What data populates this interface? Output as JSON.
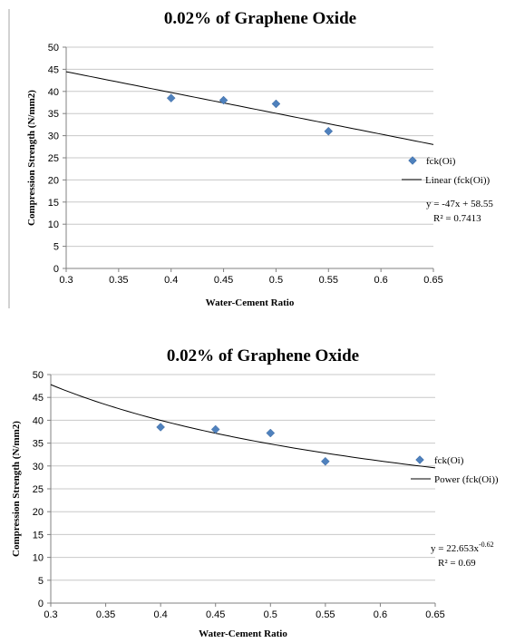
{
  "chart_data": [
    {
      "type": "scatter",
      "title": "0.02% of Graphene Oxide",
      "xlabel": "Water-Cement Ratio",
      "ylabel": "Compression Strength (N/mm2)",
      "xlim": [
        0.3,
        0.65
      ],
      "ylim": [
        0,
        50
      ],
      "xticks": [
        0.3,
        0.35,
        0.4,
        0.45,
        0.5,
        0.55,
        0.6,
        0.65
      ],
      "xtick_labels": [
        "0.3",
        "0.35",
        "0.4",
        "0.45",
        "0.5",
        "0.55",
        "0.6",
        "0.65"
      ],
      "yticks": [
        0,
        5,
        10,
        15,
        20,
        25,
        30,
        35,
        40,
        45,
        50
      ],
      "ytick_labels": [
        "0",
        "5",
        "10",
        "15",
        "20",
        "25",
        "30",
        "35",
        "40",
        "45",
        "50"
      ],
      "grid": true,
      "legend_position": "right",
      "series": [
        {
          "name": "fck(Oi)",
          "x": [
            0.4,
            0.45,
            0.5,
            0.55
          ],
          "y": [
            38.5,
            38,
            37.2,
            31
          ]
        }
      ],
      "trendline": {
        "name": "Linear (fck(Oi))",
        "kind": "linear",
        "slope": -47,
        "intercept": 58.55
      },
      "equation": "y = -47x + 58.55",
      "r_squared": "R² = 0.7413"
    },
    {
      "type": "scatter",
      "title": "0.02% of Graphene Oxide",
      "xlabel": "Water-Cement Ratio",
      "ylabel": "Compression Strength (N/mm2)",
      "xlim": [
        0.3,
        0.65
      ],
      "ylim": [
        0,
        50
      ],
      "xticks": [
        0.3,
        0.35,
        0.4,
        0.45,
        0.5,
        0.55,
        0.6,
        0.65
      ],
      "xtick_labels": [
        "0.3",
        "0.35",
        "0.4",
        "0.45",
        "0.5",
        "0.55",
        "0.6",
        "0.65"
      ],
      "yticks": [
        0,
        5,
        10,
        15,
        20,
        25,
        30,
        35,
        40,
        45,
        50
      ],
      "ytick_labels": [
        "0",
        "5",
        "10",
        "15",
        "20",
        "25",
        "30",
        "35",
        "40",
        "45",
        "50"
      ],
      "grid": true,
      "legend_position": "right",
      "series": [
        {
          "name": "fck(Oi)",
          "x": [
            0.4,
            0.45,
            0.5,
            0.55
          ],
          "y": [
            38.5,
            38,
            37.2,
            31
          ]
        }
      ],
      "trendline": {
        "name": "Power (fck(Oi))",
        "kind": "power",
        "coefficient": 22.653,
        "exponent": -0.62
      },
      "equation_prefix": "y = 22.653x",
      "equation_exponent": "-0.62",
      "r_squared": "R² = 0.69"
    }
  ]
}
